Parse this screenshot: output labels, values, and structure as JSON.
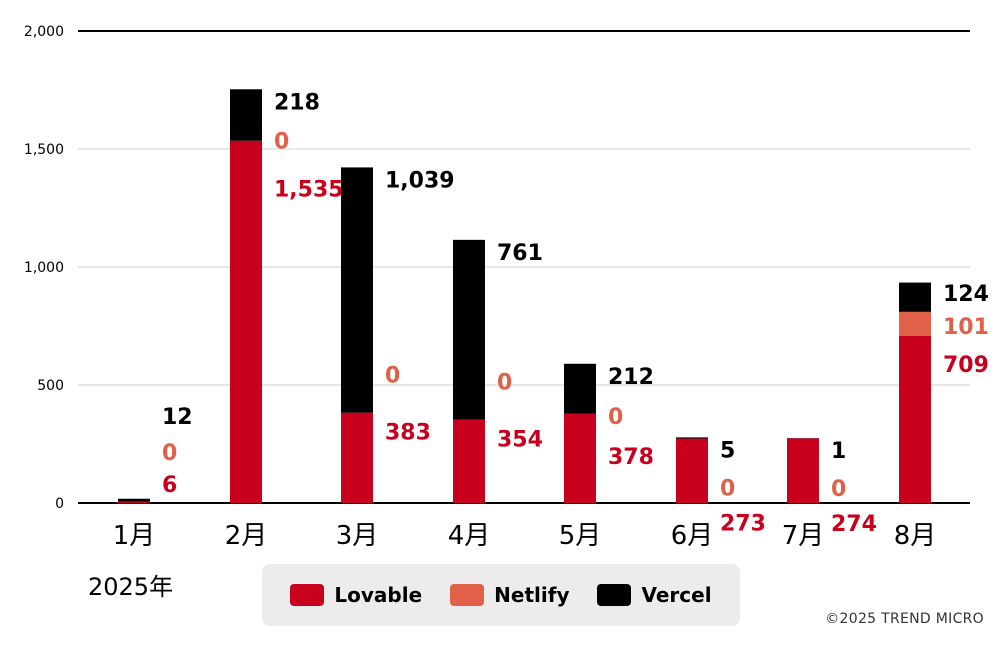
{
  "chart_data": {
    "type": "bar",
    "stacked": true,
    "categories": [
      "1月",
      "2月",
      "3月",
      "4月",
      "5月",
      "6月",
      "7月",
      "8月"
    ],
    "year_label": "2025年",
    "series": [
      {
        "name": "Lovable",
        "color": "#c8001e",
        "label_color": "#c8001e",
        "values": [
          6,
          1535,
          383,
          354,
          378,
          273,
          274,
          709
        ],
        "labels": [
          "6",
          "1,535",
          "383",
          "354",
          "378",
          "273",
          "274",
          "709"
        ]
      },
      {
        "name": "Netlify",
        "color": "#e06048",
        "label_color": "#e06048",
        "values": [
          0,
          0,
          0,
          0,
          0,
          0,
          0,
          101
        ],
        "labels": [
          "0",
          "0",
          "0",
          "0",
          "0",
          "0",
          "0",
          "101"
        ]
      },
      {
        "name": "Vercel",
        "color": "#000000",
        "label_color": "#000000",
        "values": [
          12,
          218,
          1039,
          761,
          212,
          5,
          1,
          124
        ],
        "labels": [
          "12",
          "218",
          "1,039",
          "761",
          "212",
          "5",
          "1",
          "124"
        ]
      }
    ],
    "y_ticks": [
      0,
      500,
      1000,
      1500,
      2000
    ],
    "y_tick_labels": [
      "0",
      "500",
      "1,000",
      "1,500",
      "2,000"
    ],
    "ylim": [
      0,
      2000
    ],
    "grid": true,
    "legend_position": "bottom"
  },
  "credit": "©2025 TREND MICRO"
}
